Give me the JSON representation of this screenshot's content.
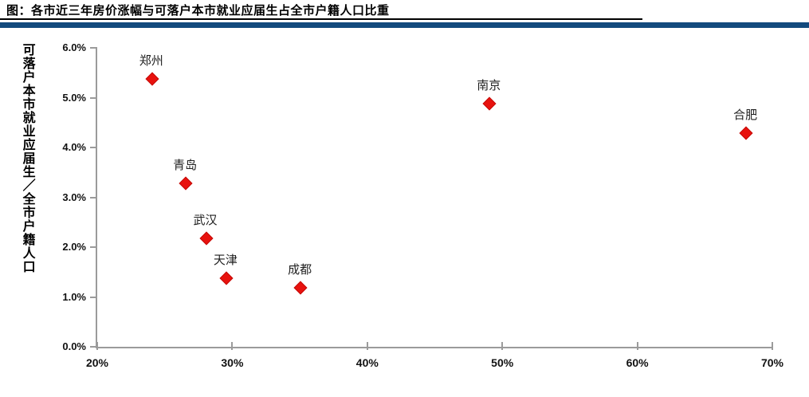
{
  "header": {
    "title": "图：各市近三年房价涨幅与可落户本市就业应届生占全市户籍人口比重"
  },
  "colors": {
    "accent_bar": "#134a7d",
    "marker_fill": "#e8120e",
    "marker_border": "#c40b08",
    "axis": "#9b9b9b",
    "text": "#000000"
  },
  "chart_data": {
    "type": "scatter",
    "title": "各市近三年房价涨幅与可落户本市就业应届生占全市户籍人口比重",
    "xlabel": "",
    "ylabel": "可落户本市就业应届生／全市户籍人口",
    "xlim": [
      20,
      70
    ],
    "ylim": [
      0,
      6
    ],
    "x_ticks": [
      "20%",
      "30%",
      "40%",
      "50%",
      "60%",
      "70%"
    ],
    "y_ticks": [
      "0.0%",
      "1.0%",
      "2.0%",
      "3.0%",
      "4.0%",
      "5.0%",
      "6.0%"
    ],
    "grid": false,
    "legend_position": "none",
    "marker_shape": "diamond",
    "points": [
      {
        "city": "郑州",
        "x": 24,
        "y": 5.4
      },
      {
        "city": "青岛",
        "x": 26.5,
        "y": 3.3
      },
      {
        "city": "武汉",
        "x": 28,
        "y": 2.2
      },
      {
        "city": "天津",
        "x": 29.5,
        "y": 1.4
      },
      {
        "city": "成都",
        "x": 35,
        "y": 1.2
      },
      {
        "city": "南京",
        "x": 49,
        "y": 4.9
      },
      {
        "city": "合肥",
        "x": 68,
        "y": 4.3
      }
    ]
  }
}
